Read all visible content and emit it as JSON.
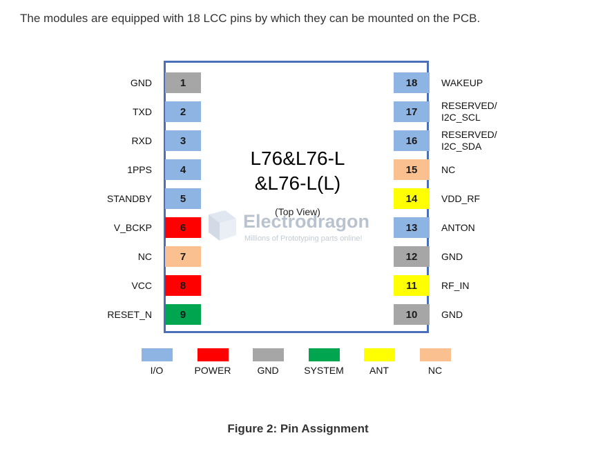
{
  "intro_text": "The modules are equipped with 18 LCC pins by which they can be mounted on the PCB.",
  "chip": {
    "title": "L76&L76-L\n&L76-L(L)",
    "view": "(Top View)"
  },
  "watermark": {
    "name": "Electrodragon",
    "tagline": "Millions of Prototyping parts online!"
  },
  "colors": {
    "io": "#8eb4e3",
    "power": "#ff0000",
    "gnd": "#a6a6a6",
    "system": "#00a550",
    "ant": "#ffff00",
    "nc": "#fac090",
    "border": "#4a6fb8"
  },
  "pins_left": [
    {
      "num": "1",
      "label": "GND",
      "type": "gnd"
    },
    {
      "num": "2",
      "label": "TXD",
      "type": "io"
    },
    {
      "num": "3",
      "label": "RXD",
      "type": "io"
    },
    {
      "num": "4",
      "label": "1PPS",
      "type": "io"
    },
    {
      "num": "5",
      "label": "STANDBY",
      "type": "io"
    },
    {
      "num": "6",
      "label": "V_BCKP",
      "type": "power"
    },
    {
      "num": "7",
      "label": "NC",
      "type": "nc"
    },
    {
      "num": "8",
      "label": "VCC",
      "type": "power"
    },
    {
      "num": "9",
      "label": "RESET_N",
      "type": "system"
    }
  ],
  "pins_right": [
    {
      "num": "18",
      "label": "WAKEUP",
      "type": "io"
    },
    {
      "num": "17",
      "label": "RESERVED/\nI2C_SCL",
      "type": "io"
    },
    {
      "num": "16",
      "label": "RESERVED/\nI2C_SDA",
      "type": "io"
    },
    {
      "num": "15",
      "label": "NC",
      "type": "nc"
    },
    {
      "num": "14",
      "label": "VDD_RF",
      "type": "ant"
    },
    {
      "num": "13",
      "label": "ANTON",
      "type": "io"
    },
    {
      "num": "12",
      "label": "GND",
      "type": "gnd"
    },
    {
      "num": "11",
      "label": "RF_IN",
      "type": "ant"
    },
    {
      "num": "10",
      "label": "GND",
      "type": "gnd"
    }
  ],
  "legend": [
    {
      "label": "I/O",
      "type": "io"
    },
    {
      "label": "POWER",
      "type": "power"
    },
    {
      "label": "GND",
      "type": "gnd"
    },
    {
      "label": "SYSTEM",
      "type": "system"
    },
    {
      "label": "ANT",
      "type": "ant"
    },
    {
      "label": "NC",
      "type": "nc"
    }
  ],
  "caption": "Figure 2: Pin Assignment"
}
